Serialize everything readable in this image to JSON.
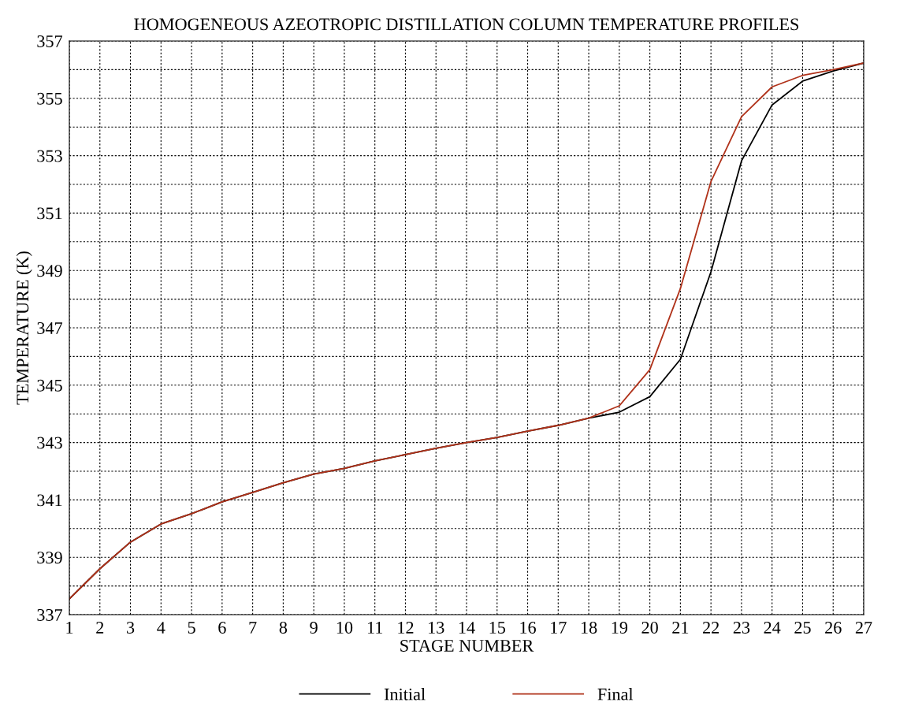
{
  "chart_data": {
    "type": "line",
    "title": "HOMOGENEOUS AZEOTROPIC DISTILLATION COLUMN TEMPERATURE PROFILES",
    "xlabel": "STAGE NUMBER",
    "ylabel": "TEMPERATURE (K)",
    "x": [
      1,
      2,
      3,
      4,
      5,
      6,
      7,
      8,
      9,
      10,
      11,
      12,
      13,
      14,
      15,
      16,
      17,
      18,
      19,
      20,
      21,
      22,
      23,
      24,
      25,
      26,
      27
    ],
    "series": [
      {
        "name": "Initial",
        "color": "#000000",
        "values": [
          337.55,
          338.6,
          339.53,
          340.16,
          340.52,
          340.93,
          341.26,
          341.6,
          341.9,
          342.1,
          342.36,
          342.58,
          342.8,
          343.0,
          343.18,
          343.4,
          343.6,
          343.85,
          344.06,
          344.6,
          345.9,
          348.95,
          352.82,
          354.77,
          355.6,
          355.95,
          356.23
        ]
      },
      {
        "name": "Final",
        "color": "#b0321a",
        "values": [
          337.55,
          338.6,
          339.53,
          340.16,
          340.52,
          340.93,
          341.26,
          341.6,
          341.9,
          342.1,
          342.36,
          342.58,
          342.8,
          343.0,
          343.18,
          343.4,
          343.6,
          343.85,
          344.28,
          345.54,
          348.37,
          352.1,
          354.36,
          355.4,
          355.8,
          356.0,
          356.23
        ]
      }
    ],
    "xlim": [
      1,
      27
    ],
    "xticks": [
      1,
      2,
      3,
      4,
      5,
      6,
      7,
      8,
      9,
      10,
      11,
      12,
      13,
      14,
      15,
      16,
      17,
      18,
      19,
      20,
      21,
      22,
      23,
      24,
      25,
      26,
      27
    ],
    "ylim": [
      337,
      357
    ],
    "yticks": [
      337,
      {
        "value": 338,
        "label": null
      },
      339,
      {
        "value": 340,
        "label": null
      },
      341,
      {
        "value": 342,
        "label": null
      },
      343,
      {
        "value": 344,
        "label": null
      },
      345,
      {
        "value": 346,
        "label": null
      },
      347,
      {
        "value": 348,
        "label": null
      },
      349,
      {
        "value": 350,
        "label": null
      },
      351,
      {
        "value": 352,
        "label": null
      },
      353,
      {
        "value": 354,
        "label": null
      },
      355,
      {
        "value": 356,
        "label": null
      },
      357
    ],
    "grid": true,
    "legend": "bottom",
    "marker": "none",
    "line_style": "solid"
  }
}
